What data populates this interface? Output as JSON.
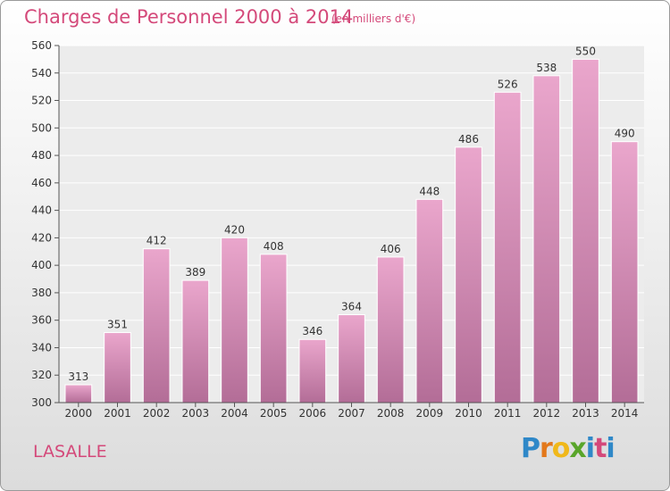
{
  "header": {
    "title": "Charges de Personnel 2000 à 2014",
    "subtitle": "(en milliers d'€)"
  },
  "footer": {
    "city": "LASALLE",
    "logo": "Proxiti"
  },
  "colors": {
    "accent": "#d4497a",
    "bar_top": "#eaa6cc",
    "bar_bottom": "#b36d97"
  },
  "chart_data": {
    "type": "bar",
    "title": "Charges de Personnel 2000 à 2014",
    "subtitle": "(en milliers d'€)",
    "xlabel": "",
    "ylabel": "",
    "categories": [
      "2000",
      "2001",
      "2002",
      "2003",
      "2004",
      "2005",
      "2006",
      "2007",
      "2008",
      "2009",
      "2010",
      "2011",
      "2012",
      "2013",
      "2014"
    ],
    "values": [
      313,
      351,
      412,
      389,
      420,
      408,
      346,
      364,
      406,
      448,
      486,
      526,
      538,
      550,
      490
    ],
    "ylim": [
      300,
      560
    ],
    "yticks": [
      300,
      320,
      340,
      360,
      380,
      400,
      420,
      440,
      460,
      480,
      500,
      520,
      540,
      560
    ],
    "grid": true,
    "legend": "none"
  }
}
